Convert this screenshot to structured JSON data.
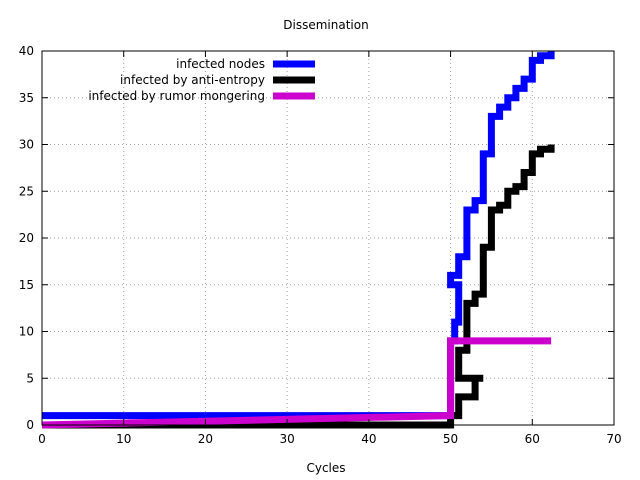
{
  "chart_data": {
    "type": "line",
    "title": "Dissemination",
    "xlabel": "Cycles",
    "ylabel": "",
    "xlim": [
      0,
      70
    ],
    "ylim": [
      0,
      40
    ],
    "xticks": [
      0,
      10,
      20,
      30,
      40,
      50,
      60,
      70
    ],
    "yticks": [
      0,
      5,
      10,
      15,
      20,
      25,
      30,
      35,
      40
    ],
    "grid": true,
    "legend_position": "top-right",
    "series": [
      {
        "name": "infected nodes",
        "color": "#0000ff",
        "step": true,
        "points": [
          [
            0,
            1
          ],
          [
            50,
            2
          ],
          [
            50,
            9
          ],
          [
            50.5,
            11
          ],
          [
            51,
            13
          ],
          [
            51,
            15
          ],
          [
            50,
            15
          ],
          [
            50,
            16
          ],
          [
            51,
            16
          ],
          [
            51,
            18
          ],
          [
            52,
            19
          ],
          [
            52,
            23
          ],
          [
            53,
            23
          ],
          [
            53,
            24
          ],
          [
            54,
            24
          ],
          [
            54,
            29
          ],
          [
            55,
            30
          ],
          [
            55,
            33
          ],
          [
            56,
            34
          ],
          [
            57,
            35
          ],
          [
            58,
            36
          ],
          [
            59,
            37
          ],
          [
            60,
            39
          ],
          [
            61,
            39.5
          ],
          [
            62.3,
            40
          ]
        ]
      },
      {
        "name": "infected by anti-entropy",
        "color": "#000000",
        "step": true,
        "points": [
          [
            0,
            0
          ],
          [
            50,
            0
          ],
          [
            50,
            1
          ],
          [
            51,
            3
          ],
          [
            53,
            3
          ],
          [
            53,
            5
          ],
          [
            54,
            5
          ],
          [
            53,
            5
          ],
          [
            51,
            5
          ],
          [
            51,
            8
          ],
          [
            52,
            10
          ],
          [
            52,
            13
          ],
          [
            53,
            13
          ],
          [
            53,
            14
          ],
          [
            54,
            14
          ],
          [
            54,
            19
          ],
          [
            55,
            20
          ],
          [
            55,
            23
          ],
          [
            56,
            23.5
          ],
          [
            57,
            24
          ],
          [
            57,
            25
          ],
          [
            58,
            25.5
          ],
          [
            59,
            26
          ],
          [
            59,
            27
          ],
          [
            60,
            28
          ],
          [
            60,
            29
          ],
          [
            61,
            29.5
          ],
          [
            62.3,
            30
          ]
        ]
      },
      {
        "name": "infected by rumor mongering",
        "color": "#cc00cc",
        "step": false,
        "points": [
          [
            0,
            0
          ],
          [
            50,
            1
          ],
          [
            50,
            9
          ],
          [
            62.3,
            9
          ]
        ]
      }
    ]
  }
}
